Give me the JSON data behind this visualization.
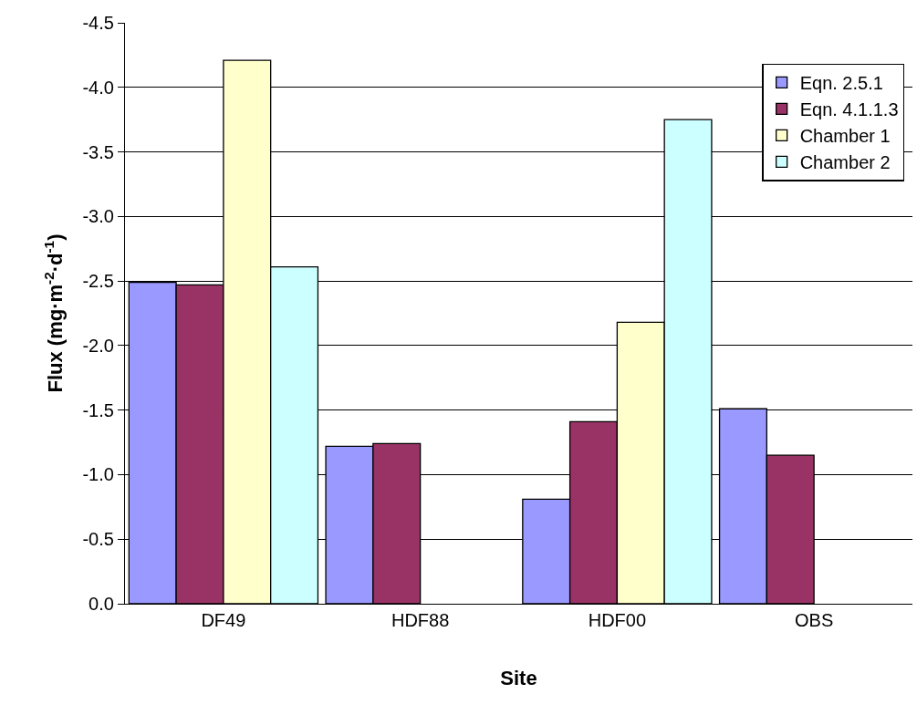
{
  "chart_data": {
    "type": "bar",
    "xlabel": "Site",
    "ylabel": "Flux (mg·m$^{-2}$·d$^{-1}$)",
    "categories": [
      "DF49",
      "HDF88",
      "HDF00",
      "OBS"
    ],
    "series": [
      {
        "name": "Eqn. 2.5.1",
        "color": "#9999ff",
        "values": [
          -2.49,
          -1.22,
          -0.81,
          -1.51
        ]
      },
      {
        "name": "Eqn. 4.1.1.3",
        "color": "#993366",
        "values": [
          -2.47,
          -1.24,
          -1.41,
          -1.15
        ]
      },
      {
        "name": "Chamber 1",
        "color": "#ffffcc",
        "values": [
          -4.21,
          null,
          -2.18,
          null
        ]
      },
      {
        "name": "Chamber 2",
        "color": "#ccffff",
        "values": [
          -2.61,
          null,
          -3.75,
          null
        ]
      }
    ],
    "ylim": [
      0,
      -4.5
    ],
    "yticks": [
      {
        "value": 0,
        "label": "0.0"
      },
      {
        "value": -0.5,
        "label": "-0.5"
      },
      {
        "value": -1,
        "label": "-1.0"
      },
      {
        "value": -1.5,
        "label": "-1.5"
      },
      {
        "value": -2,
        "label": "-2.0"
      },
      {
        "value": -2.5,
        "label": "-2.5"
      },
      {
        "value": -3,
        "label": "-3.0"
      },
      {
        "value": -3.5,
        "label": "-3.5"
      },
      {
        "value": -4,
        "label": "-4.0"
      },
      {
        "value": -4.5,
        "label": "-4.5"
      }
    ],
    "grid": "y",
    "legend": "top right"
  }
}
